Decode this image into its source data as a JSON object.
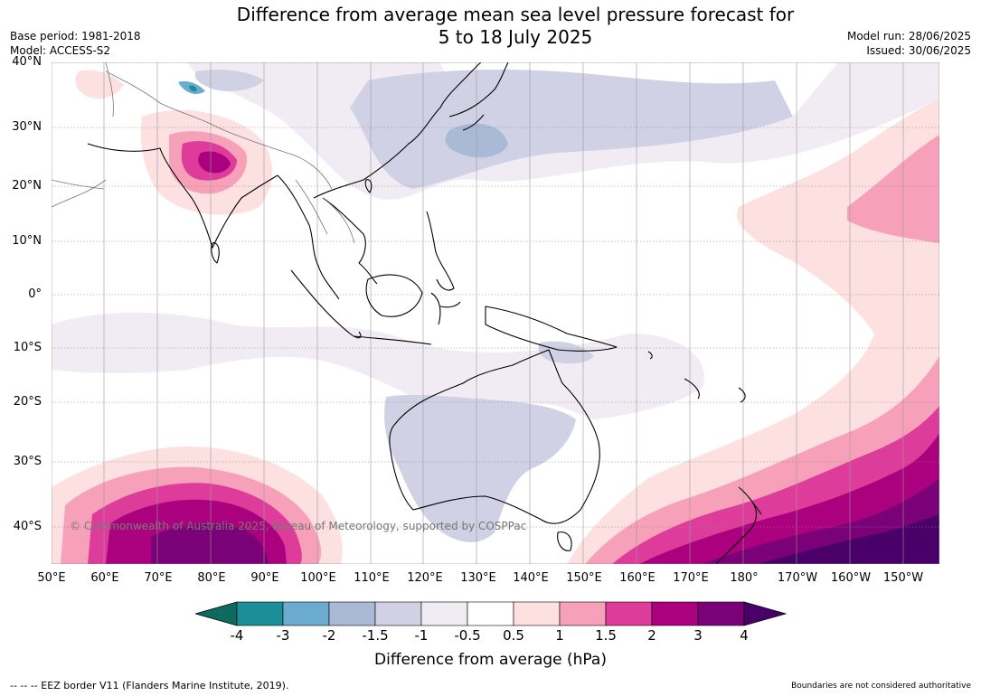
{
  "title_line1": "Difference from average mean sea level pressure forecast for",
  "title_line2": "5 to 18 July 2025",
  "base_period": "Base period: 1981-2018",
  "model": "Model: ACCESS-S2",
  "model_run": "Model run: 28/06/2025",
  "issued": "Issued: 30/06/2025",
  "latitude_labels": [
    "40°N",
    "30°N",
    "20°N",
    "10°N",
    "0°",
    "10°S",
    "20°S",
    "30°S",
    "40°S"
  ],
  "longitude_labels": [
    "50°E",
    "60°E",
    "70°E",
    "80°E",
    "90°E",
    "100°E",
    "110°E",
    "120°E",
    "130°E",
    "140°E",
    "150°E",
    "160°E",
    "170°E",
    "180°",
    "170°W",
    "160°W",
    "150°W"
  ],
  "copyright": "© Commonwealth of Australia 2025, Bureau of Meteorology, supported by COSPPac",
  "colorbar": {
    "label": "Difference from average (hPa)",
    "ticks": [
      "-4",
      "-3",
      "-2",
      "-1.5",
      "-1",
      "-0.5",
      "0.5",
      "1",
      "1.5",
      "2",
      "3",
      "4"
    ],
    "colors": [
      "#0c6a5e",
      "#1a8f97",
      "#6aabcf",
      "#a9b9d6",
      "#d0d1e4",
      "#f1ecf4",
      "#ffffff",
      "#fde0e0",
      "#f7a0b9",
      "#de3c9b",
      "#ac017e",
      "#7a0177",
      "#490068"
    ]
  },
  "footer_left": "--  --  -- EEZ border V11 (Flanders Marine Institute, 2019).",
  "footer_right": "Boundaries are not considered authoritative"
}
